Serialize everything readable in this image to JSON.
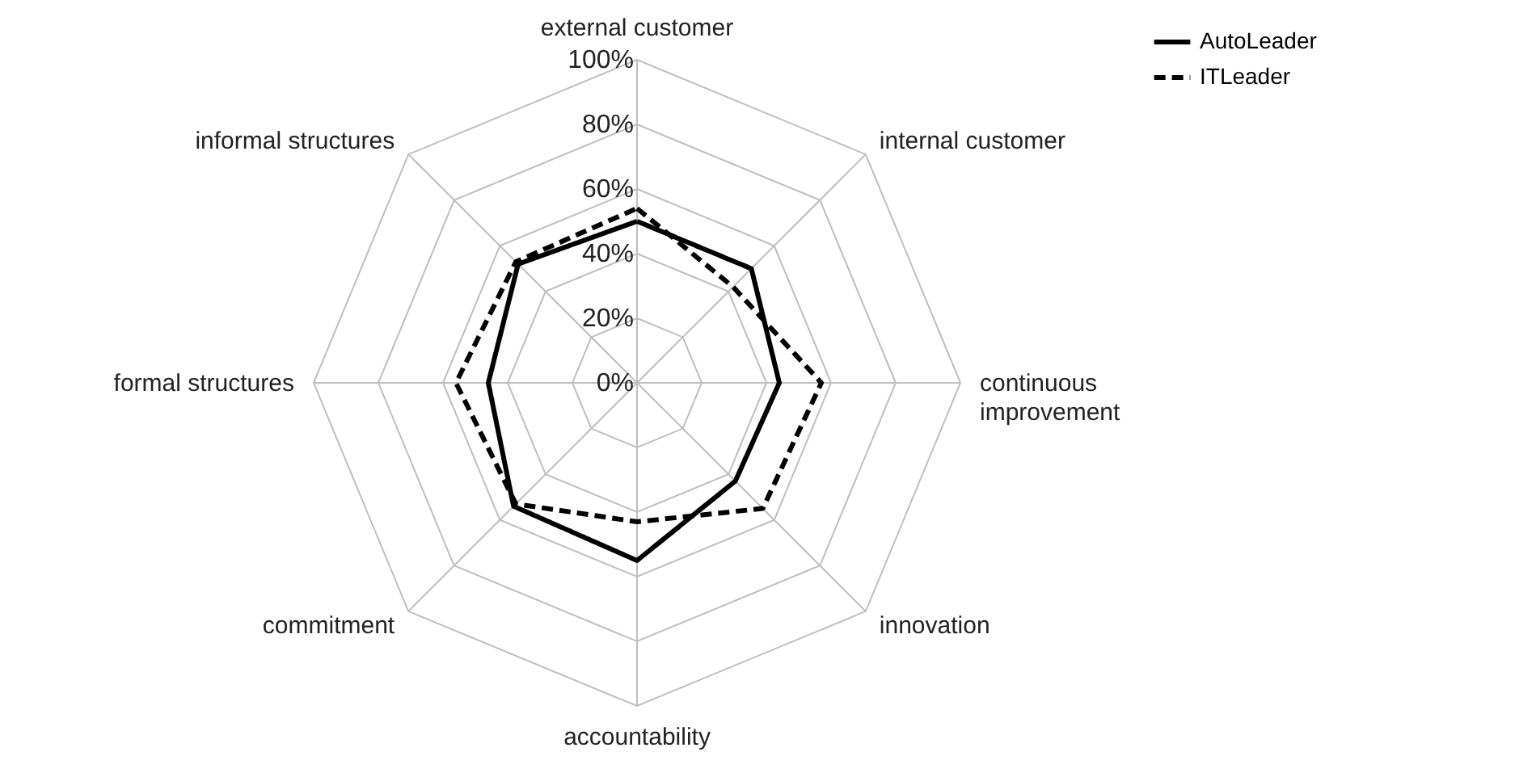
{
  "chart_data": {
    "type": "radar",
    "categories": [
      "external customer",
      "internal customer",
      "continuous improvement",
      "innovation",
      "accountability",
      "commitment",
      "formal structures",
      "informal structures"
    ],
    "series": [
      {
        "name": "AutoLeader",
        "color": "#000000",
        "line_style": "solid",
        "values": [
          50,
          50,
          44,
          43,
          55,
          54,
          46,
          52
        ]
      },
      {
        "name": "ITLeader",
        "color": "#000000",
        "line_style": "dashed",
        "values": [
          54,
          42,
          57,
          55,
          43,
          53,
          56,
          53
        ]
      }
    ],
    "ylim": [
      0,
      100
    ],
    "yticks": [
      {
        "value": 0,
        "label": "0%"
      },
      {
        "value": 20,
        "label": "20%"
      },
      {
        "value": 40,
        "label": "40%"
      },
      {
        "value": 60,
        "label": "60%"
      },
      {
        "value": 80,
        "label": "80%"
      },
      {
        "value": 100,
        "label": "100%"
      }
    ],
    "grid": true,
    "legend": "right",
    "marker": "none"
  }
}
